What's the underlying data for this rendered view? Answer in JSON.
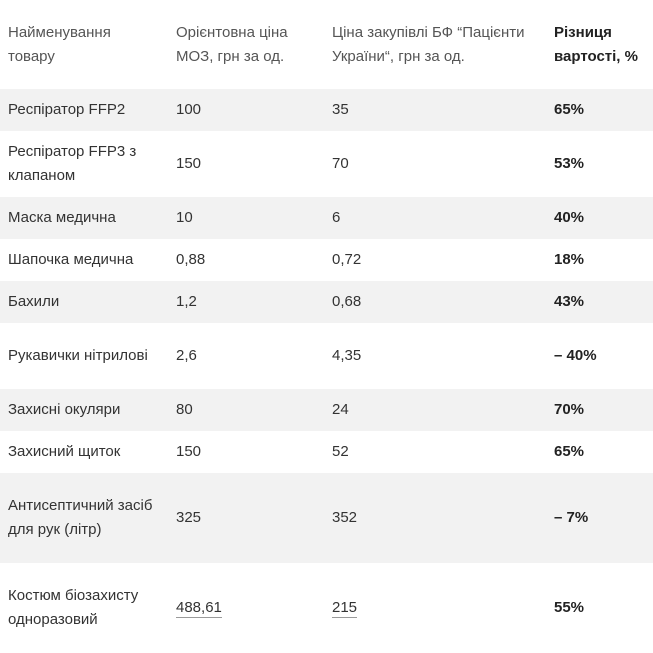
{
  "table": {
    "headers": [
      "Найменування товару",
      "Орієнтовна ціна МОЗ, грн за од.",
      "Ціна закупівлі БФ “Пацієнти України“, грн за од.",
      "Різниця вартості, %"
    ],
    "rows": [
      {
        "name": "Респіратор FFP2",
        "moz": "100",
        "bf": "35",
        "diff": "65%"
      },
      {
        "name": "Респіратор FFP3 з клапаном",
        "moz": "150",
        "bf": "70",
        "diff": "53%"
      },
      {
        "name": "Маска медична",
        "moz": "10",
        "bf": "6",
        "diff": "40%"
      },
      {
        "name": "Шапочка медична",
        "moz": "0,88",
        "bf": "0,72",
        "diff": "18%"
      },
      {
        "name": "Бахили",
        "moz": "1,2",
        "bf": "0,68",
        "diff": "43%"
      },
      {
        "name": "Рукавички нітрилові",
        "moz": "2,6",
        "bf": "4,35",
        "diff": "– 40%"
      },
      {
        "name": "Захисні окуляри",
        "moz": "80",
        "bf": "24",
        "diff": "70%"
      },
      {
        "name": "Захисний щиток",
        "moz": "150",
        "bf": "52",
        "diff": "65%"
      },
      {
        "name": "Антисептичний засіб для рук (літр)",
        "moz": "325",
        "bf": "352",
        "diff": "– 7%"
      },
      {
        "name": "Костюм біозахисту одноразовий",
        "moz": "488,61",
        "bf": "215",
        "diff": "55%"
      }
    ]
  },
  "colors": {
    "stripe": "#f2f2f2",
    "text": "#333333",
    "emphasis": "#222222"
  }
}
